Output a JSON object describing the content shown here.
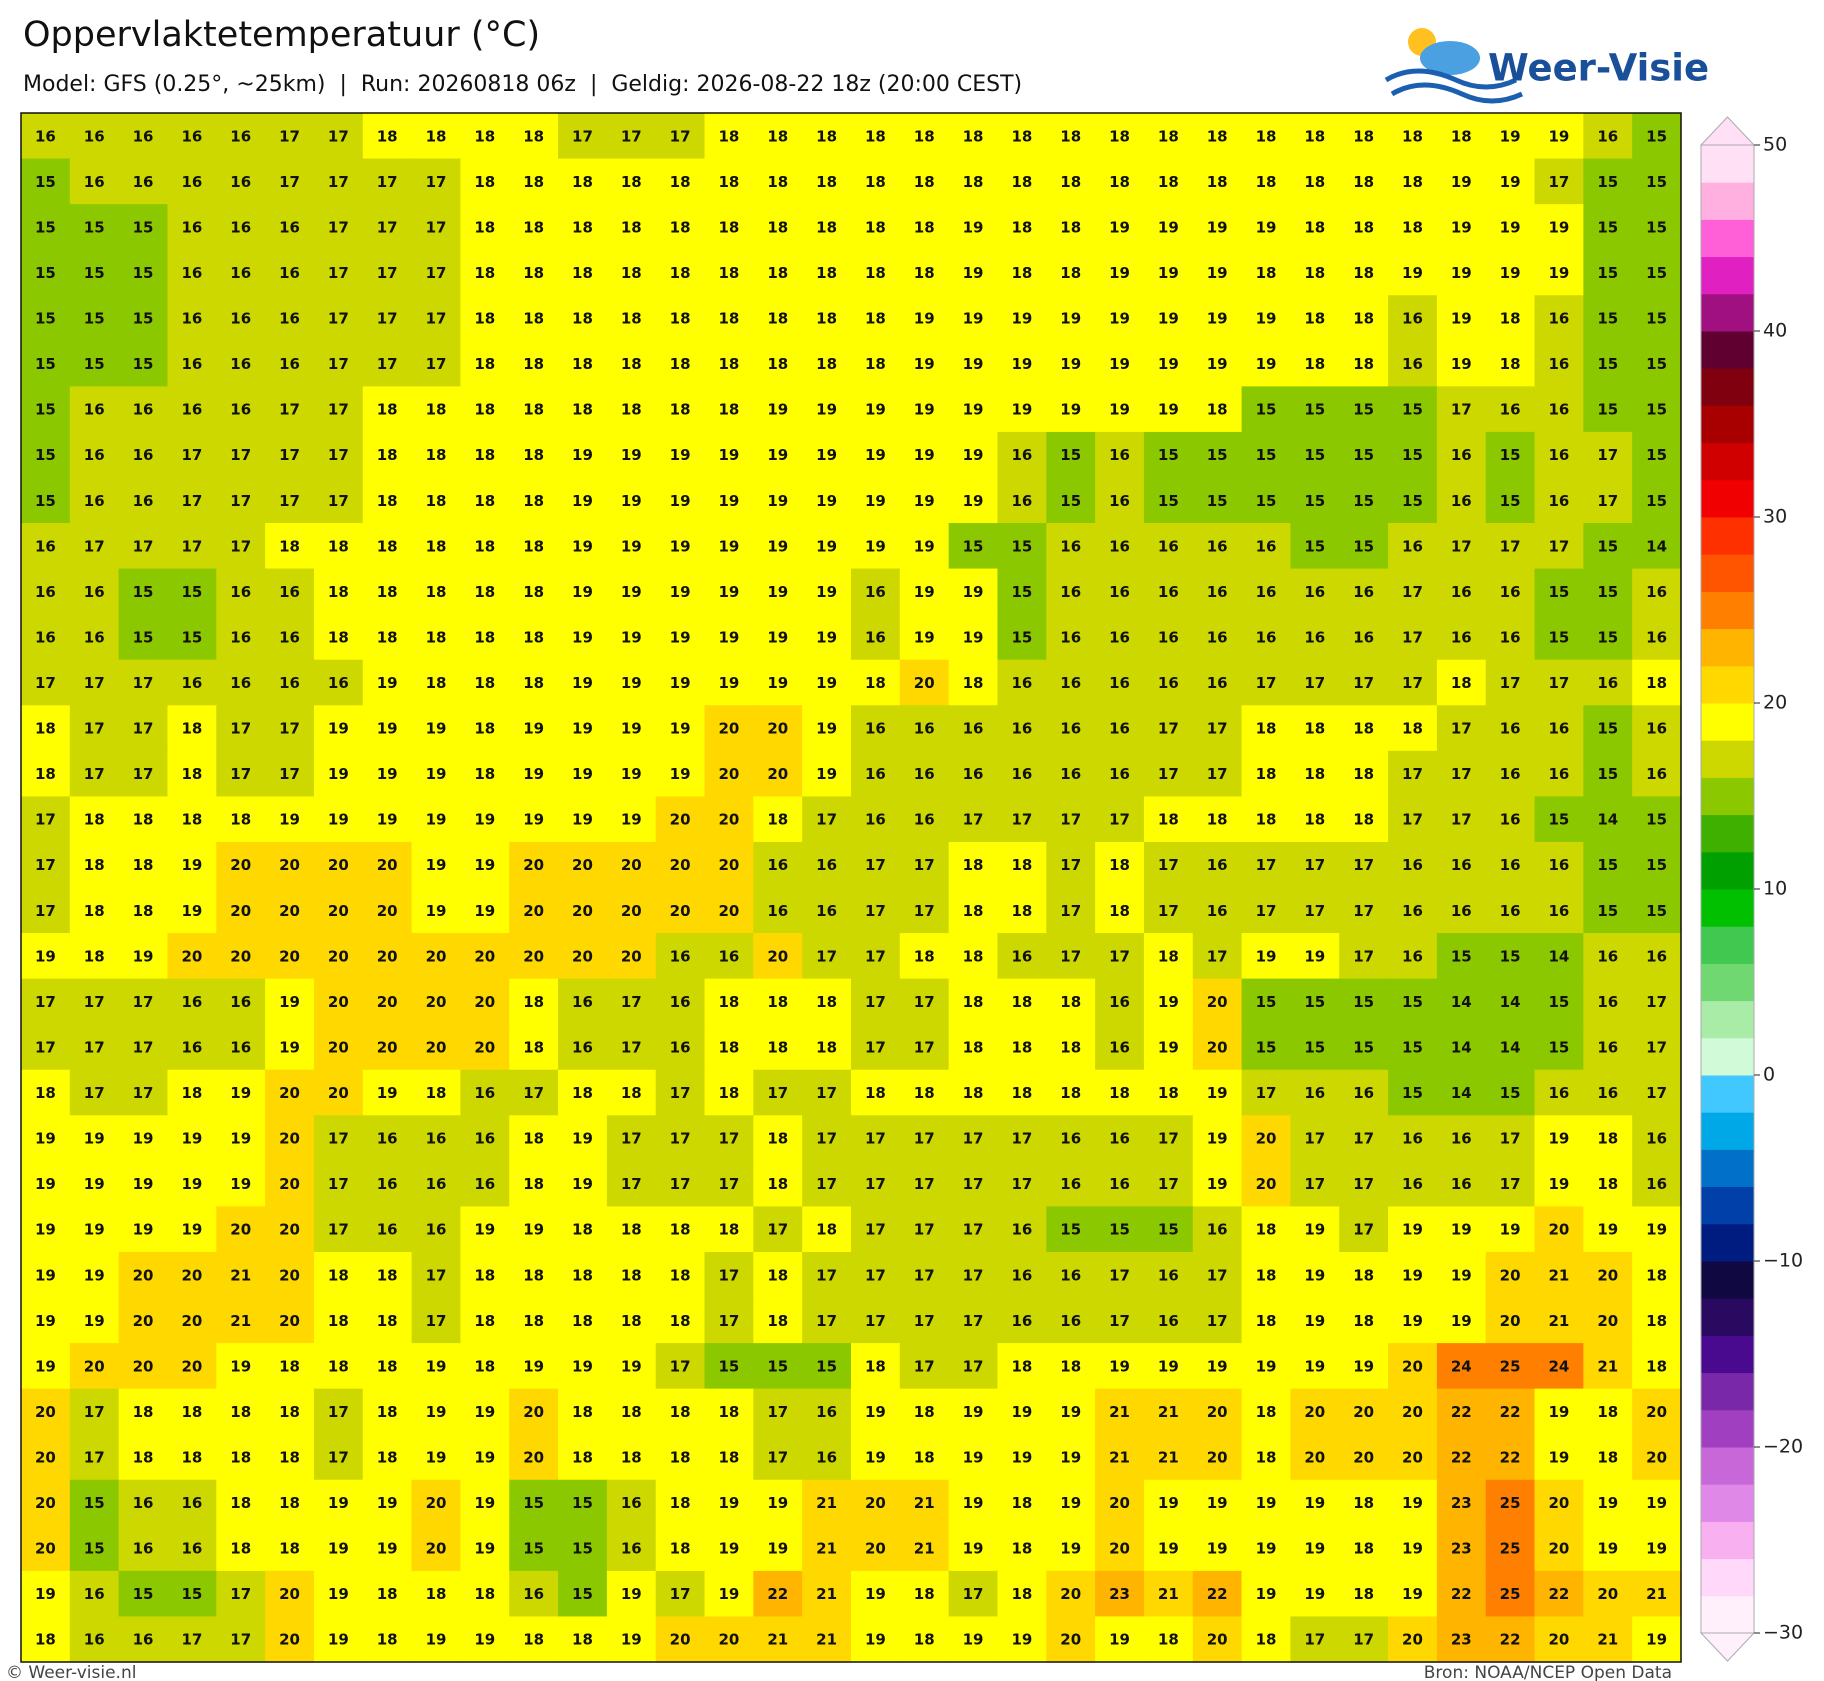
{
  "map": {
    "title": "Oppervlaktetemperatuur (°C)",
    "subtitle": "Model: GFS (0.25°, ~25km)  |  Run: 20260818 06z  |  Geldig: 2026-08-22 18z (20:00 CEST)",
    "logo": "Weer-Visie",
    "credit": "© Weer-visie.nl",
    "source": "Bron: NOAA/NCEP Open Data",
    "values": [
      [
        16,
        16,
        16,
        16,
        16,
        17,
        17,
        18,
        18,
        18,
        18,
        17,
        17,
        17,
        18,
        18,
        18,
        18,
        18,
        18,
        18,
        18,
        18,
        18,
        18,
        18,
        18,
        18,
        18,
        18,
        19,
        19,
        16,
        15
      ],
      [
        15,
        16,
        16,
        16,
        16,
        17,
        17,
        17,
        17,
        18,
        18,
        18,
        18,
        18,
        18,
        18,
        18,
        18,
        18,
        18,
        18,
        18,
        18,
        18,
        18,
        18,
        18,
        18,
        18,
        19,
        19,
        17,
        15,
        15
      ],
      [
        15,
        15,
        15,
        16,
        16,
        16,
        17,
        17,
        17,
        18,
        18,
        18,
        18,
        18,
        18,
        18,
        18,
        18,
        18,
        19,
        18,
        18,
        19,
        19,
        19,
        19,
        18,
        18,
        18,
        19,
        19,
        19,
        15,
        15
      ],
      [
        15,
        15,
        15,
        16,
        16,
        16,
        17,
        17,
        17,
        18,
        18,
        18,
        18,
        18,
        18,
        18,
        18,
        18,
        18,
        19,
        18,
        18,
        19,
        19,
        19,
        18,
        18,
        18,
        19,
        19,
        19,
        19,
        15,
        15
      ],
      [
        15,
        15,
        15,
        16,
        16,
        16,
        17,
        17,
        17,
        18,
        18,
        18,
        18,
        18,
        18,
        18,
        18,
        18,
        19,
        19,
        19,
        19,
        19,
        19,
        19,
        19,
        18,
        18,
        16,
        19,
        18,
        16,
        15,
        15
      ],
      [
        15,
        15,
        15,
        16,
        16,
        16,
        17,
        17,
        17,
        18,
        18,
        18,
        18,
        18,
        18,
        18,
        18,
        18,
        19,
        19,
        19,
        19,
        19,
        19,
        19,
        19,
        18,
        18,
        16,
        19,
        18,
        16,
        15,
        15
      ],
      [
        15,
        16,
        16,
        16,
        16,
        17,
        17,
        18,
        18,
        18,
        18,
        18,
        18,
        18,
        18,
        19,
        19,
        19,
        19,
        19,
        19,
        19,
        19,
        19,
        18,
        15,
        15,
        15,
        15,
        17,
        16,
        16,
        15,
        15
      ],
      [
        15,
        16,
        16,
        17,
        17,
        17,
        17,
        18,
        18,
        18,
        18,
        19,
        19,
        19,
        19,
        19,
        19,
        19,
        19,
        19,
        16,
        15,
        16,
        15,
        15,
        15,
        15,
        15,
        15,
        16,
        15,
        16,
        17,
        15
      ],
      [
        15,
        16,
        16,
        17,
        17,
        17,
        17,
        18,
        18,
        18,
        18,
        19,
        19,
        19,
        19,
        19,
        19,
        19,
        19,
        19,
        16,
        15,
        16,
        15,
        15,
        15,
        15,
        15,
        15,
        16,
        15,
        16,
        17,
        15
      ],
      [
        16,
        17,
        17,
        17,
        17,
        18,
        18,
        18,
        18,
        18,
        18,
        19,
        19,
        19,
        19,
        19,
        19,
        19,
        19,
        15,
        15,
        16,
        16,
        16,
        16,
        16,
        15,
        15,
        16,
        17,
        17,
        17,
        15,
        14
      ],
      [
        16,
        16,
        15,
        15,
        16,
        16,
        18,
        18,
        18,
        18,
        18,
        19,
        19,
        19,
        19,
        19,
        19,
        16,
        19,
        19,
        15,
        16,
        16,
        16,
        16,
        16,
        16,
        16,
        17,
        16,
        16,
        15,
        15,
        16
      ],
      [
        16,
        16,
        15,
        15,
        16,
        16,
        18,
        18,
        18,
        18,
        18,
        19,
        19,
        19,
        19,
        19,
        19,
        16,
        19,
        19,
        15,
        16,
        16,
        16,
        16,
        16,
        16,
        16,
        17,
        16,
        16,
        15,
        15,
        16
      ],
      [
        17,
        17,
        17,
        16,
        16,
        16,
        16,
        19,
        18,
        18,
        18,
        19,
        19,
        19,
        19,
        19,
        19,
        18,
        20,
        18,
        16,
        16,
        16,
        16,
        16,
        17,
        17,
        17,
        17,
        18,
        17,
        17,
        16,
        18
      ],
      [
        18,
        17,
        17,
        18,
        17,
        17,
        19,
        19,
        19,
        18,
        19,
        19,
        19,
        19,
        20,
        20,
        19,
        16,
        16,
        16,
        16,
        16,
        16,
        17,
        17,
        18,
        18,
        18,
        18,
        17,
        16,
        16,
        15,
        16
      ],
      [
        18,
        17,
        17,
        18,
        17,
        17,
        19,
        19,
        19,
        18,
        19,
        19,
        19,
        19,
        20,
        20,
        19,
        16,
        16,
        16,
        16,
        16,
        16,
        17,
        17,
        18,
        18,
        18,
        17,
        17,
        16,
        16,
        15,
        16
      ],
      [
        17,
        18,
        18,
        18,
        18,
        19,
        19,
        19,
        19,
        19,
        19,
        19,
        19,
        20,
        20,
        18,
        17,
        16,
        16,
        17,
        17,
        17,
        17,
        18,
        18,
        18,
        18,
        18,
        17,
        17,
        16,
        15,
        14,
        15
      ],
      [
        17,
        18,
        18,
        19,
        20,
        20,
        20,
        20,
        19,
        19,
        20,
        20,
        20,
        20,
        20,
        16,
        16,
        17,
        17,
        18,
        18,
        17,
        18,
        17,
        16,
        17,
        17,
        17,
        16,
        16,
        16,
        16,
        15,
        15
      ],
      [
        17,
        18,
        18,
        19,
        20,
        20,
        20,
        20,
        19,
        19,
        20,
        20,
        20,
        20,
        20,
        16,
        16,
        17,
        17,
        18,
        18,
        17,
        18,
        17,
        16,
        17,
        17,
        17,
        16,
        16,
        16,
        16,
        15,
        15
      ],
      [
        19,
        18,
        19,
        20,
        20,
        20,
        20,
        20,
        20,
        20,
        20,
        20,
        20,
        16,
        16,
        20,
        17,
        17,
        18,
        18,
        16,
        17,
        17,
        18,
        17,
        19,
        19,
        17,
        16,
        15,
        15,
        14,
        16,
        16
      ],
      [
        17,
        17,
        17,
        16,
        16,
        19,
        20,
        20,
        20,
        20,
        18,
        16,
        17,
        16,
        18,
        18,
        18,
        17,
        17,
        18,
        18,
        18,
        16,
        19,
        20,
        15,
        15,
        15,
        15,
        14,
        14,
        15,
        16,
        17
      ],
      [
        17,
        17,
        17,
        16,
        16,
        19,
        20,
        20,
        20,
        20,
        18,
        16,
        17,
        16,
        18,
        18,
        18,
        17,
        17,
        18,
        18,
        18,
        16,
        19,
        20,
        15,
        15,
        15,
        15,
        14,
        14,
        15,
        16,
        17
      ],
      [
        18,
        17,
        17,
        18,
        19,
        20,
        20,
        19,
        18,
        16,
        17,
        18,
        18,
        17,
        18,
        17,
        17,
        18,
        18,
        18,
        18,
        18,
        18,
        18,
        19,
        17,
        16,
        16,
        15,
        14,
        15,
        16,
        16,
        17
      ],
      [
        19,
        19,
        19,
        19,
        19,
        20,
        17,
        16,
        16,
        16,
        18,
        19,
        17,
        17,
        17,
        18,
        17,
        17,
        17,
        17,
        17,
        16,
        16,
        17,
        19,
        20,
        17,
        17,
        16,
        16,
        17,
        19,
        18,
        16
      ],
      [
        19,
        19,
        19,
        19,
        19,
        20,
        17,
        16,
        16,
        16,
        18,
        19,
        17,
        17,
        17,
        18,
        17,
        17,
        17,
        17,
        17,
        16,
        16,
        17,
        19,
        20,
        17,
        17,
        16,
        16,
        17,
        19,
        18,
        16
      ],
      [
        19,
        19,
        19,
        19,
        20,
        20,
        17,
        16,
        16,
        19,
        19,
        18,
        18,
        18,
        18,
        17,
        18,
        17,
        17,
        17,
        16,
        15,
        15,
        15,
        16,
        18,
        19,
        17,
        19,
        19,
        19,
        20,
        19,
        19
      ],
      [
        19,
        19,
        20,
        20,
        21,
        20,
        18,
        18,
        17,
        18,
        18,
        18,
        18,
        18,
        17,
        18,
        17,
        17,
        17,
        17,
        16,
        16,
        17,
        16,
        17,
        18,
        19,
        18,
        19,
        19,
        20,
        21,
        20,
        18
      ],
      [
        19,
        19,
        20,
        20,
        21,
        20,
        18,
        18,
        17,
        18,
        18,
        18,
        18,
        18,
        17,
        18,
        17,
        17,
        17,
        17,
        16,
        16,
        17,
        16,
        17,
        18,
        19,
        18,
        19,
        19,
        20,
        21,
        20,
        18
      ],
      [
        19,
        20,
        20,
        20,
        19,
        18,
        18,
        18,
        19,
        18,
        19,
        19,
        19,
        17,
        15,
        15,
        15,
        18,
        17,
        17,
        18,
        18,
        19,
        19,
        19,
        19,
        19,
        19,
        20,
        24,
        25,
        24,
        21,
        18
      ],
      [
        20,
        17,
        18,
        18,
        18,
        18,
        17,
        18,
        19,
        19,
        20,
        18,
        18,
        18,
        18,
        17,
        16,
        19,
        18,
        19,
        19,
        19,
        21,
        21,
        20,
        18,
        20,
        20,
        20,
        22,
        22,
        19,
        18,
        20
      ],
      [
        20,
        17,
        18,
        18,
        18,
        18,
        17,
        18,
        19,
        19,
        20,
        18,
        18,
        18,
        18,
        17,
        16,
        19,
        18,
        19,
        19,
        19,
        21,
        21,
        20,
        18,
        20,
        20,
        20,
        22,
        22,
        19,
        18,
        20
      ],
      [
        20,
        15,
        16,
        16,
        18,
        18,
        19,
        19,
        20,
        19,
        15,
        15,
        16,
        18,
        19,
        19,
        21,
        20,
        21,
        19,
        18,
        19,
        20,
        19,
        19,
        19,
        19,
        18,
        19,
        23,
        25,
        20,
        19,
        19
      ],
      [
        20,
        15,
        16,
        16,
        18,
        18,
        19,
        19,
        20,
        19,
        15,
        15,
        16,
        18,
        19,
        19,
        21,
        20,
        21,
        19,
        18,
        19,
        20,
        19,
        19,
        19,
        19,
        18,
        19,
        23,
        25,
        20,
        19,
        19
      ],
      [
        19,
        16,
        15,
        15,
        17,
        20,
        19,
        18,
        18,
        18,
        16,
        15,
        19,
        17,
        19,
        22,
        21,
        19,
        18,
        17,
        18,
        20,
        23,
        21,
        22,
        19,
        19,
        18,
        19,
        22,
        25,
        22,
        20,
        21
      ],
      [
        18,
        16,
        16,
        17,
        17,
        20,
        19,
        18,
        19,
        19,
        18,
        18,
        19,
        20,
        20,
        21,
        21,
        19,
        18,
        19,
        19,
        20,
        19,
        18,
        20,
        18,
        17,
        17,
        20,
        23,
        22,
        20,
        21,
        19
      ]
    ],
    "colorbar": {
      "lim": [
        -30,
        50
      ],
      "ticks": [
        {
          "value": -30,
          "label": "−30"
        },
        {
          "value": -20,
          "label": "−20"
        },
        {
          "value": -10,
          "label": "−10"
        },
        0,
        10,
        20,
        30,
        40,
        50
      ],
      "colors": [
        "#fff0fc",
        "#ffd8fa",
        "#f8b0f0",
        "#e088e8",
        "#c868d8",
        "#a040c0",
        "#7828a8",
        "#4a0a90",
        "#2a0a60",
        "#100840",
        "#001c80",
        "#0040a8",
        "#0070c8",
        "#00a8e8",
        "#40c8ff",
        "#d0fad8",
        "#a8eca8",
        "#70d870",
        "#40c850",
        "#00c000",
        "#00a000",
        "#40b000",
        "#8cc800",
        "#ccd800",
        "#ffff00",
        "#ffd800",
        "#ffb400",
        "#ff8000",
        "#ff5500",
        "#ff3000",
        "#f00000",
        "#d00000",
        "#a80000",
        "#800010",
        "#600030",
        "#a01080",
        "#e020c0",
        "#ff60d8",
        "#ffb0e0",
        "#ffe0f5"
      ]
    }
  }
}
